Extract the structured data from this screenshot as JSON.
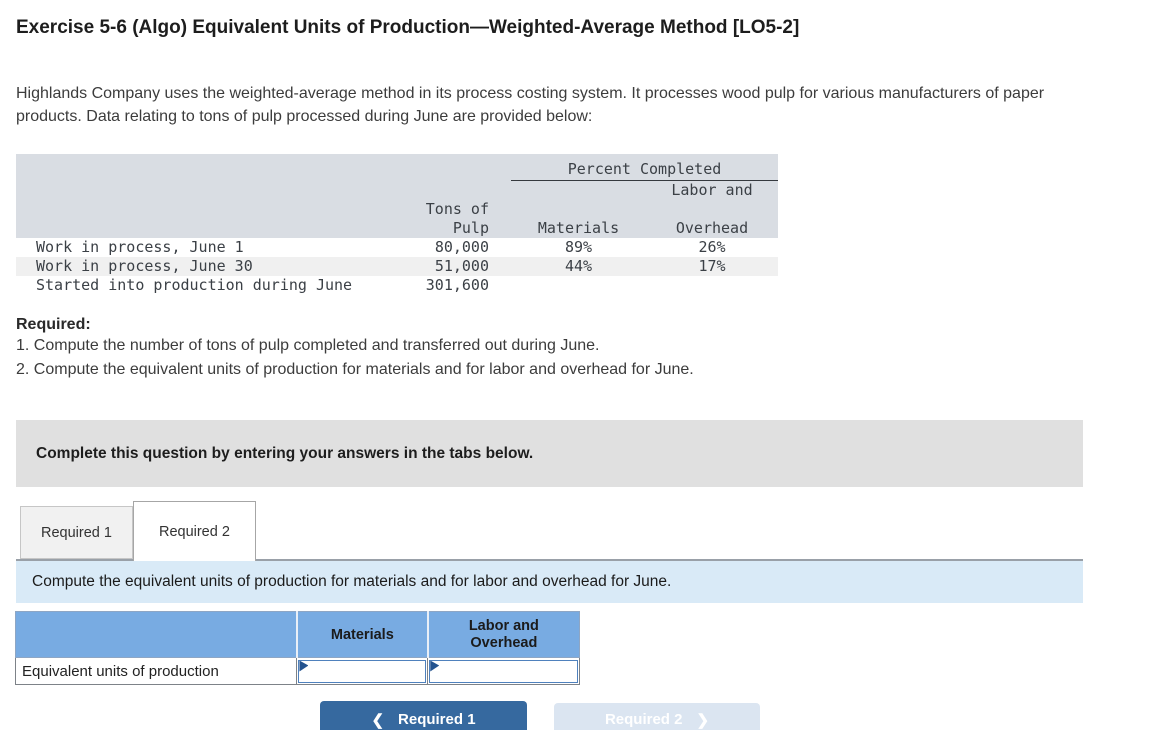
{
  "page": {
    "title": "Exercise 5-6 (Algo) Equivalent Units of Production—Weighted-Average Method [LO5-2]",
    "intro": "Highlands Company uses the weighted-average method in its process costing system. It processes wood pulp for various manufacturers of paper products. Data relating to tons of pulp processed during June are provided below:"
  },
  "data_table": {
    "headers": {
      "percent_completed": "Percent Completed",
      "tons": "Tons of Pulp",
      "materials": "Materials",
      "labor_line1": "Labor and",
      "labor_line2": "Overhead"
    },
    "rows": [
      {
        "label": "Work in process, June 1",
        "tons": "80,000",
        "materials": "89%",
        "labor": "26%"
      },
      {
        "label": "Work in process, June 30",
        "tons": "51,000",
        "materials": "44%",
        "labor": "17%"
      },
      {
        "label": "Started into production during June",
        "tons": "301,600",
        "materials": "",
        "labor": ""
      }
    ]
  },
  "required": {
    "heading": "Required:",
    "items": [
      "1. Compute the number of tons of pulp completed and transferred out during June.",
      "2. Compute the equivalent units of production for materials and for labor and overhead for June."
    ]
  },
  "instruction_box": {
    "text": "Complete this question by entering your answers in the tabs below."
  },
  "tabs": [
    {
      "label": "Required 1",
      "active": false
    },
    {
      "label": "Required 2",
      "active": true
    }
  ],
  "tab_panel": {
    "prompt": "Compute the equivalent units of production for materials and for labor and overhead for June."
  },
  "answer_table": {
    "columns": [
      "Materials",
      "Labor and Overhead"
    ],
    "rows": [
      {
        "label": "Equivalent units of production",
        "values": [
          "",
          ""
        ]
      }
    ]
  },
  "nav": {
    "prev_chevron": "❮",
    "prev_label": "Required 1",
    "next_label": "Required 2",
    "next_chevron": "❯"
  },
  "colors": {
    "answer_header_blue": "#78abe2",
    "primary_button_blue": "#36699f",
    "disabled_button_blue": "#dbe5f1",
    "panel_light_blue": "#d9eaf7",
    "instruction_gray": "#e0e0e0",
    "table_header_gray": "#d9dde3",
    "stripe_gray": "#f0f0f0"
  }
}
